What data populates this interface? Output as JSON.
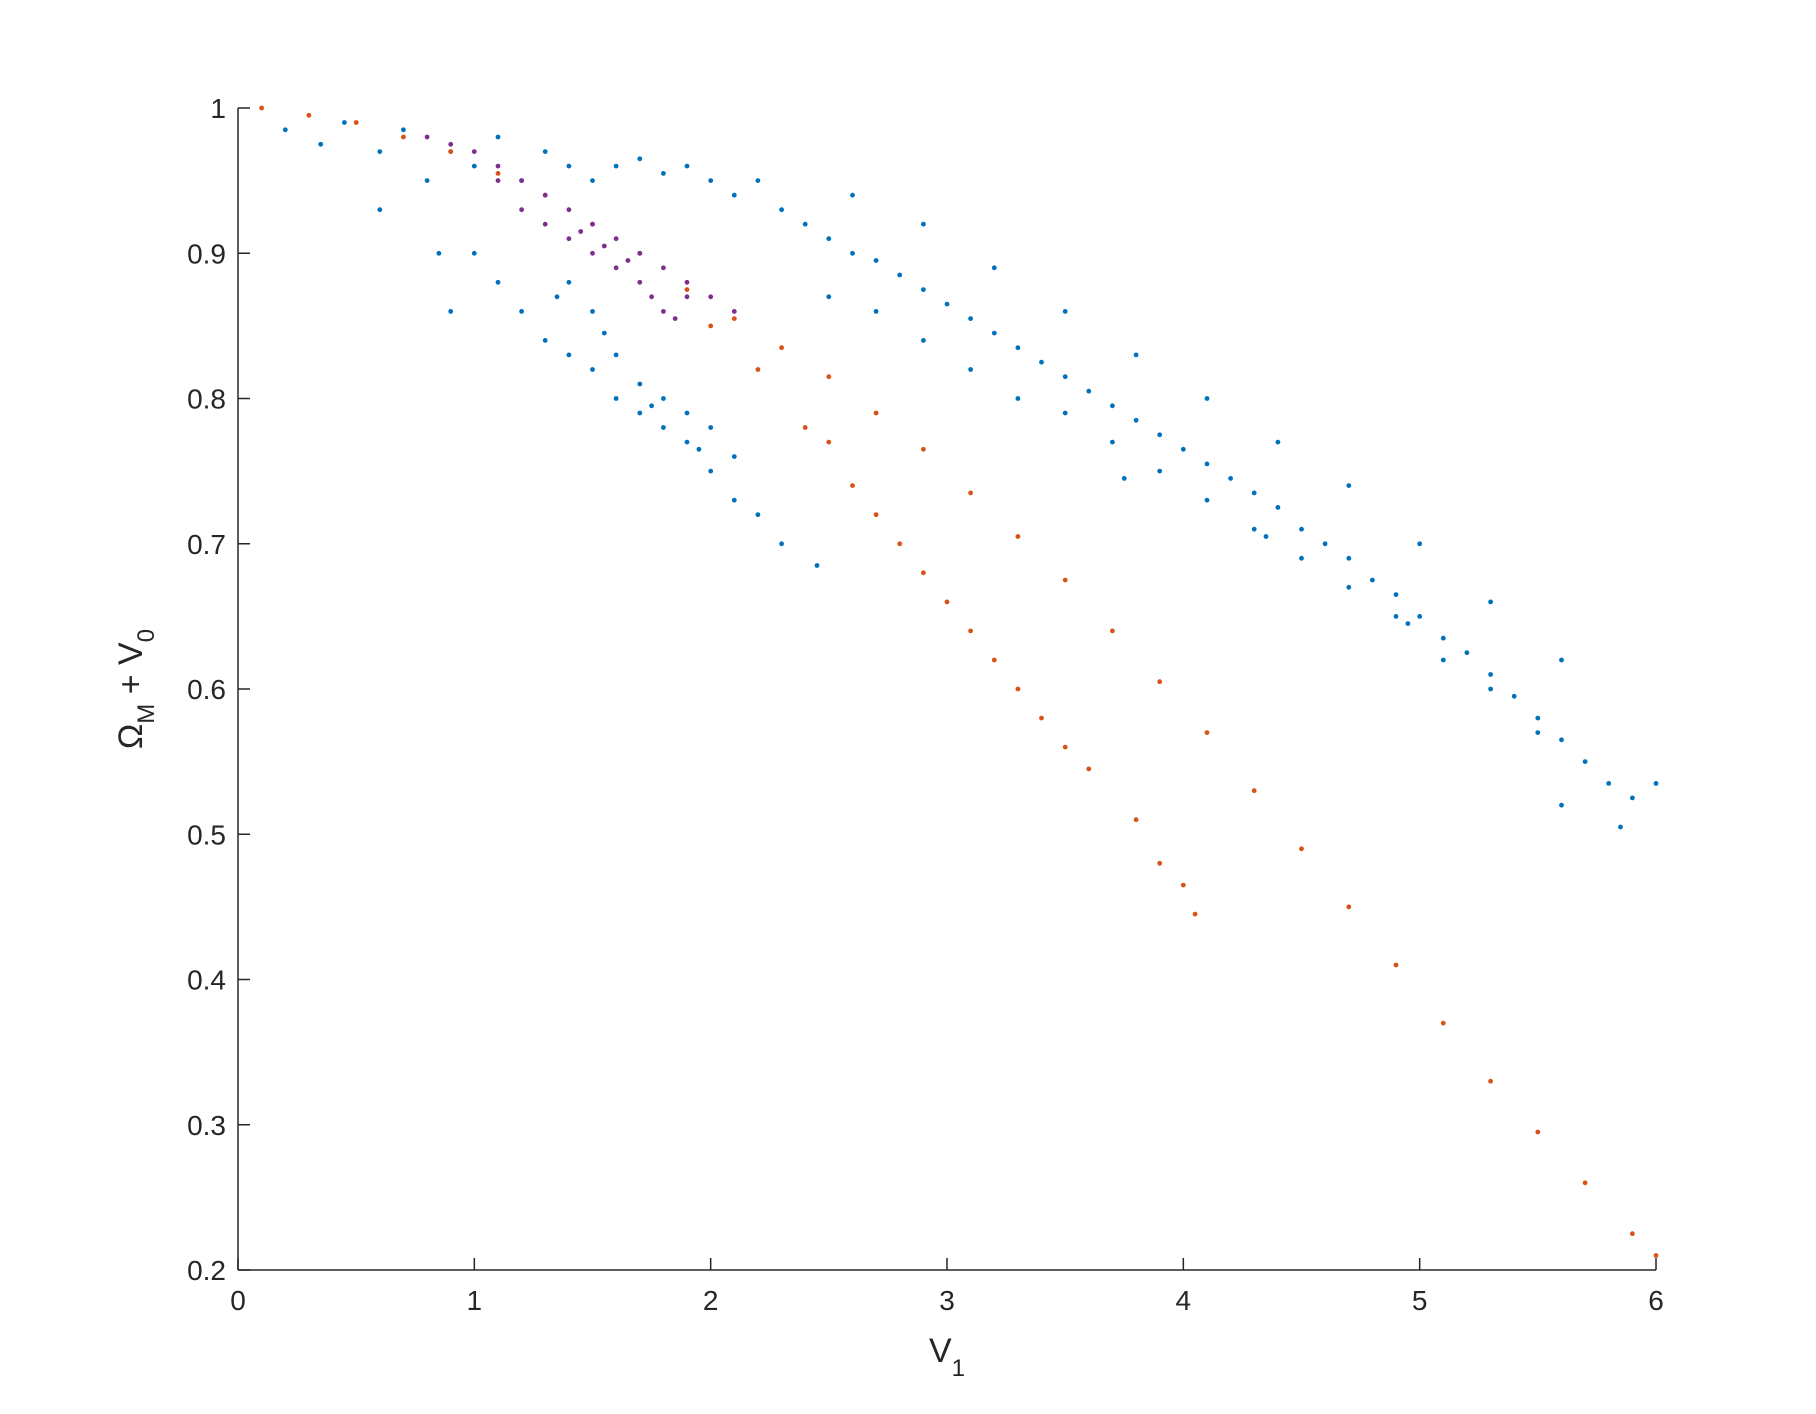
{
  "chart_data": {
    "type": "scatter",
    "title": "",
    "xlabel": "V1",
    "ylabel": "ΩM + V0",
    "xlabel_parts": {
      "main": "V",
      "sub": "1"
    },
    "ylabel_parts": {
      "sym": "Ω",
      "sub1": "M",
      "mid": " + V",
      "sub2": "0"
    },
    "xlim": [
      0,
      6
    ],
    "ylim": [
      0.2,
      1
    ],
    "x_ticks": [
      0,
      1,
      2,
      3,
      4,
      5,
      6
    ],
    "x_tick_labels": [
      "0",
      "1",
      "2",
      "3",
      "4",
      "5",
      "6"
    ],
    "y_ticks": [
      0.2,
      0.3,
      0.4,
      0.5,
      0.6,
      0.7,
      0.8,
      0.9,
      1
    ],
    "y_tick_labels": [
      "0.2",
      "0.3",
      "0.4",
      "0.5",
      "0.6",
      "0.7",
      "0.8",
      "0.9",
      "1"
    ],
    "grid": false,
    "legend": "none",
    "series": [
      {
        "color": "#0072BD",
        "points": [
          [
            0.2,
            0.985
          ],
          [
            0.35,
            0.975
          ],
          [
            0.45,
            0.99
          ],
          [
            0.6,
            0.97
          ],
          [
            0.7,
            0.985
          ],
          [
            0.8,
            0.95
          ],
          [
            0.9,
            0.97
          ],
          [
            1.0,
            0.96
          ],
          [
            1.1,
            0.98
          ],
          [
            1.2,
            0.95
          ],
          [
            1.3,
            0.97
          ],
          [
            1.4,
            0.96
          ],
          [
            1.5,
            0.95
          ],
          [
            1.6,
            0.96
          ],
          [
            1.7,
            0.965
          ],
          [
            1.8,
            0.955
          ],
          [
            1.9,
            0.96
          ],
          [
            2.0,
            0.95
          ],
          [
            2.1,
            0.94
          ],
          [
            2.2,
            0.95
          ],
          [
            0.6,
            0.93
          ],
          [
            0.85,
            0.9
          ],
          [
            0.9,
            0.86
          ],
          [
            1.0,
            0.9
          ],
          [
            1.1,
            0.88
          ],
          [
            1.2,
            0.86
          ],
          [
            1.3,
            0.84
          ],
          [
            1.4,
            0.83
          ],
          [
            1.5,
            0.82
          ],
          [
            1.6,
            0.8
          ],
          [
            1.7,
            0.79
          ],
          [
            1.8,
            0.78
          ],
          [
            1.9,
            0.77
          ],
          [
            2.0,
            0.75
          ],
          [
            2.1,
            0.73
          ],
          [
            2.2,
            0.72
          ],
          [
            2.3,
            0.7
          ],
          [
            2.45,
            0.685
          ],
          [
            1.5,
            0.86
          ],
          [
            1.6,
            0.83
          ],
          [
            1.7,
            0.81
          ],
          [
            1.8,
            0.8
          ],
          [
            1.9,
            0.79
          ],
          [
            2.0,
            0.78
          ],
          [
            2.1,
            0.76
          ],
          [
            1.4,
            0.88
          ],
          [
            1.35,
            0.87
          ],
          [
            1.55,
            0.845
          ],
          [
            1.75,
            0.795
          ],
          [
            1.95,
            0.765
          ],
          [
            2.3,
            0.93
          ],
          [
            2.4,
            0.92
          ],
          [
            2.5,
            0.91
          ],
          [
            2.6,
            0.9
          ],
          [
            2.7,
            0.895
          ],
          [
            2.8,
            0.885
          ],
          [
            2.9,
            0.875
          ],
          [
            3.0,
            0.865
          ],
          [
            3.1,
            0.855
          ],
          [
            3.2,
            0.845
          ],
          [
            3.3,
            0.835
          ],
          [
            3.4,
            0.825
          ],
          [
            3.5,
            0.815
          ],
          [
            3.6,
            0.805
          ],
          [
            3.7,
            0.795
          ],
          [
            3.8,
            0.785
          ],
          [
            3.9,
            0.775
          ],
          [
            4.0,
            0.765
          ],
          [
            4.1,
            0.755
          ],
          [
            4.2,
            0.745
          ],
          [
            4.3,
            0.735
          ],
          [
            4.4,
            0.725
          ],
          [
            4.5,
            0.71
          ],
          [
            4.6,
            0.7
          ],
          [
            4.7,
            0.69
          ],
          [
            4.8,
            0.675
          ],
          [
            4.9,
            0.665
          ],
          [
            5.0,
            0.65
          ],
          [
            5.1,
            0.635
          ],
          [
            5.2,
            0.625
          ],
          [
            5.3,
            0.61
          ],
          [
            5.4,
            0.595
          ],
          [
            5.5,
            0.58
          ],
          [
            5.6,
            0.565
          ],
          [
            5.7,
            0.55
          ],
          [
            5.8,
            0.535
          ],
          [
            5.9,
            0.525
          ],
          [
            6.0,
            0.535
          ],
          [
            5.85,
            0.505
          ],
          [
            5.6,
            0.52
          ],
          [
            2.5,
            0.87
          ],
          [
            2.7,
            0.86
          ],
          [
            2.9,
            0.84
          ],
          [
            3.1,
            0.82
          ],
          [
            3.3,
            0.8
          ],
          [
            3.5,
            0.79
          ],
          [
            3.7,
            0.77
          ],
          [
            3.9,
            0.75
          ],
          [
            4.1,
            0.73
          ],
          [
            4.3,
            0.71
          ],
          [
            4.5,
            0.69
          ],
          [
            4.7,
            0.67
          ],
          [
            4.9,
            0.65
          ],
          [
            5.1,
            0.62
          ],
          [
            5.3,
            0.6
          ],
          [
            5.5,
            0.57
          ],
          [
            2.6,
            0.94
          ],
          [
            2.9,
            0.92
          ],
          [
            3.2,
            0.89
          ],
          [
            3.5,
            0.86
          ],
          [
            3.8,
            0.83
          ],
          [
            4.1,
            0.8
          ],
          [
            4.4,
            0.77
          ],
          [
            4.7,
            0.74
          ],
          [
            5.0,
            0.7
          ],
          [
            5.3,
            0.66
          ],
          [
            5.6,
            0.62
          ],
          [
            3.75,
            0.745
          ],
          [
            4.35,
            0.705
          ],
          [
            4.95,
            0.645
          ]
        ]
      },
      {
        "color": "#D95319",
        "points": [
          [
            0.1,
            1.0
          ],
          [
            0.3,
            0.995
          ],
          [
            0.5,
            0.99
          ],
          [
            0.7,
            0.98
          ],
          [
            0.9,
            0.97
          ],
          [
            1.1,
            0.955
          ],
          [
            1.3,
            0.94
          ],
          [
            1.5,
            0.92
          ],
          [
            1.7,
            0.9
          ],
          [
            1.9,
            0.875
          ],
          [
            2.1,
            0.855
          ],
          [
            2.3,
            0.835
          ],
          [
            2.5,
            0.815
          ],
          [
            2.7,
            0.79
          ],
          [
            2.9,
            0.765
          ],
          [
            3.1,
            0.735
          ],
          [
            3.3,
            0.705
          ],
          [
            3.5,
            0.675
          ],
          [
            3.7,
            0.64
          ],
          [
            3.9,
            0.605
          ],
          [
            4.1,
            0.57
          ],
          [
            4.3,
            0.53
          ],
          [
            4.5,
            0.49
          ],
          [
            4.7,
            0.45
          ],
          [
            4.9,
            0.41
          ],
          [
            5.1,
            0.37
          ],
          [
            5.3,
            0.33
          ],
          [
            5.5,
            0.295
          ],
          [
            5.7,
            0.26
          ],
          [
            5.9,
            0.225
          ],
          [
            6.0,
            0.21
          ],
          [
            2.0,
            0.85
          ],
          [
            2.2,
            0.82
          ],
          [
            2.4,
            0.78
          ],
          [
            2.6,
            0.74
          ],
          [
            2.8,
            0.7
          ],
          [
            3.0,
            0.66
          ],
          [
            3.2,
            0.62
          ],
          [
            3.4,
            0.58
          ],
          [
            3.6,
            0.545
          ],
          [
            3.8,
            0.51
          ],
          [
            3.9,
            0.48
          ],
          [
            4.0,
            0.465
          ],
          [
            4.05,
            0.445
          ],
          [
            3.3,
            0.6
          ],
          [
            3.5,
            0.56
          ],
          [
            2.5,
            0.77
          ],
          [
            2.7,
            0.72
          ],
          [
            2.9,
            0.68
          ],
          [
            3.1,
            0.64
          ]
        ]
      },
      {
        "color": "#7E2F8E",
        "points": [
          [
            0.8,
            0.98
          ],
          [
            0.9,
            0.975
          ],
          [
            1.0,
            0.97
          ],
          [
            1.1,
            0.96
          ],
          [
            1.2,
            0.95
          ],
          [
            1.3,
            0.94
          ],
          [
            1.4,
            0.93
          ],
          [
            1.5,
            0.92
          ],
          [
            1.6,
            0.91
          ],
          [
            1.7,
            0.9
          ],
          [
            1.8,
            0.89
          ],
          [
            1.9,
            0.88
          ],
          [
            2.0,
            0.87
          ],
          [
            2.1,
            0.86
          ],
          [
            1.2,
            0.93
          ],
          [
            1.3,
            0.92
          ],
          [
            1.4,
            0.91
          ],
          [
            1.5,
            0.9
          ],
          [
            1.6,
            0.89
          ],
          [
            1.7,
            0.88
          ],
          [
            1.75,
            0.87
          ],
          [
            1.8,
            0.86
          ],
          [
            1.85,
            0.855
          ],
          [
            1.1,
            0.95
          ],
          [
            1.45,
            0.915
          ],
          [
            1.65,
            0.895
          ],
          [
            1.9,
            0.87
          ],
          [
            1.55,
            0.905
          ]
        ]
      }
    ]
  }
}
